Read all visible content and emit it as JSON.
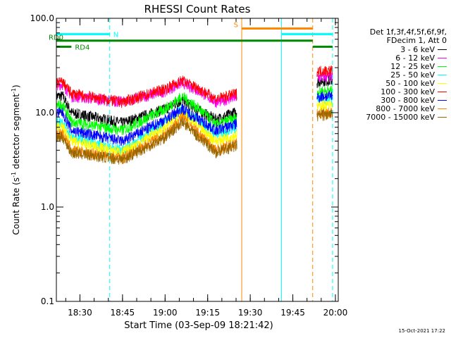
{
  "chart_data": {
    "type": "line",
    "title": "RHESSI Count Rates",
    "xlabel": "Start Time (03-Sep-09 18:21:42)",
    "ylabel": "Count Rate (s",
    "ylabel_sup1": "-1",
    "ylabel_mid": " detector segment",
    "ylabel_sup2": "-1",
    "ylabel_end": ")",
    "yscale": "log",
    "ylim": [
      0.1,
      100
    ],
    "xlim": [
      "18:21:42",
      "20:01:00"
    ],
    "x_ticks": [
      "18:30",
      "18:45",
      "19:00",
      "19:15",
      "19:30",
      "19:45",
      "20:00"
    ],
    "y_ticks": [
      "0.1",
      "1.0",
      "10.0",
      "100.0"
    ],
    "legend_header": [
      "Det 1f,3f,4f,5f,6f,9f,",
      "FDecim 1, Att 0"
    ],
    "series": [
      {
        "name": "3 - 6 keV",
        "color": "#000000",
        "values": [
          [
            18.4,
            15
          ],
          [
            18.45,
            10
          ],
          [
            18.75,
            7.8
          ],
          [
            19.0,
            11
          ],
          [
            19.1,
            13.5
          ],
          [
            19.2,
            10.5
          ],
          [
            19.3,
            8.5
          ],
          [
            19.92,
            22
          ]
        ]
      },
      {
        "name": "6 - 12 keV",
        "color": "#ff00ff",
        "values": [
          [
            18.4,
            20
          ],
          [
            18.45,
            15
          ],
          [
            18.75,
            13
          ],
          [
            19.0,
            17
          ],
          [
            19.1,
            21
          ],
          [
            19.2,
            17
          ],
          [
            19.3,
            13
          ],
          [
            19.92,
            24
          ]
        ]
      },
      {
        "name": "12 - 25 keV",
        "color": "#00ff00",
        "values": [
          [
            18.4,
            12
          ],
          [
            18.45,
            8
          ],
          [
            18.75,
            6.5
          ],
          [
            19.0,
            11
          ],
          [
            19.1,
            15
          ],
          [
            19.2,
            11
          ],
          [
            19.3,
            7.5
          ],
          [
            19.92,
            17
          ]
        ]
      },
      {
        "name": "25 - 50 keV",
        "color": "#00ffff",
        "values": [
          [
            18.4,
            8
          ],
          [
            18.45,
            5.5
          ],
          [
            18.75,
            4
          ],
          [
            19.0,
            8
          ],
          [
            19.1,
            11
          ],
          [
            19.2,
            8
          ],
          [
            19.3,
            6
          ],
          [
            19.92,
            14
          ]
        ]
      },
      {
        "name": "50 - 100 keV",
        "color": "#ffff00",
        "values": [
          [
            18.4,
            7
          ],
          [
            18.45,
            5
          ],
          [
            18.75,
            3.8
          ],
          [
            19.0,
            7
          ],
          [
            19.1,
            10
          ],
          [
            19.2,
            7
          ],
          [
            19.3,
            5
          ],
          [
            19.92,
            12
          ]
        ]
      },
      {
        "name": "100 - 300 keV",
        "color": "#ff0000",
        "values": [
          [
            18.4,
            21
          ],
          [
            18.45,
            16
          ],
          [
            18.75,
            13
          ],
          [
            19.0,
            18
          ],
          [
            19.1,
            22
          ],
          [
            19.2,
            18
          ],
          [
            19.3,
            14
          ],
          [
            19.92,
            28
          ]
        ]
      },
      {
        "name": "300 - 800 keV",
        "color": "#0000ff",
        "values": [
          [
            18.4,
            10
          ],
          [
            18.45,
            6.5
          ],
          [
            18.75,
            5
          ],
          [
            19.0,
            8.5
          ],
          [
            19.1,
            11
          ],
          [
            19.2,
            8.5
          ],
          [
            19.3,
            6.5
          ],
          [
            19.92,
            15
          ]
        ]
      },
      {
        "name": "800 - 7000 keV",
        "color": "#ff8800",
        "values": [
          [
            18.4,
            6
          ],
          [
            18.45,
            4
          ],
          [
            18.75,
            3.3
          ],
          [
            19.0,
            6
          ],
          [
            19.1,
            9
          ],
          [
            19.2,
            6
          ],
          [
            19.3,
            4
          ],
          [
            19.92,
            10
          ]
        ]
      },
      {
        "name": "7000 - 15000 keV",
        "color": "#996600",
        "values": [
          [
            18.4,
            5.5
          ],
          [
            18.45,
            3.8
          ],
          [
            18.75,
            3.2
          ],
          [
            19.0,
            5.5
          ],
          [
            19.1,
            8
          ],
          [
            19.2,
            5.5
          ],
          [
            19.3,
            3.8
          ],
          [
            19.92,
            9.5
          ]
        ]
      }
    ],
    "segments": [
      {
        "label": "N",
        "color": "#00ffff",
        "y": 68,
        "x_start": "18:21:42",
        "x_end": "18:40:30"
      },
      {
        "label": "",
        "color": "#00ffff",
        "y": 68,
        "x_start": "19:41:00",
        "x_end": "19:59:00"
      },
      {
        "label": "S",
        "color": "#ff8800",
        "y": 78,
        "x_start": "19:27:00",
        "x_end": "19:52:00"
      },
      {
        "label": "RD0",
        "color": "#008800",
        "y": 58,
        "x_start": "18:21:42",
        "x_end": "19:52:00"
      },
      {
        "label": "RD4",
        "color": "#008800",
        "y": 50,
        "x_start": "18:21:42",
        "x_end": "18:27:00"
      },
      {
        "label": "",
        "color": "#008800",
        "y": 50,
        "x_start": "19:52:00",
        "x_end": "19:59:00"
      }
    ],
    "vertical_markers": [
      {
        "time": "18:21:42",
        "color": "#00ffff",
        "style": "solid"
      },
      {
        "time": "18:40:30",
        "color": "#00ffff",
        "style": "dashed"
      },
      {
        "time": "19:27:00",
        "color": "#ff8800",
        "style": "solid"
      },
      {
        "time": "19:41:00",
        "color": "#00ffff",
        "style": "solid"
      },
      {
        "time": "19:52:00",
        "color": "#ff8800",
        "style": "dashed"
      },
      {
        "time": "19:59:00",
        "color": "#00ffff",
        "style": "dashed"
      }
    ],
    "grid": false,
    "legend_position": "right"
  },
  "timestamp": "15-Oct-2021 17:22"
}
